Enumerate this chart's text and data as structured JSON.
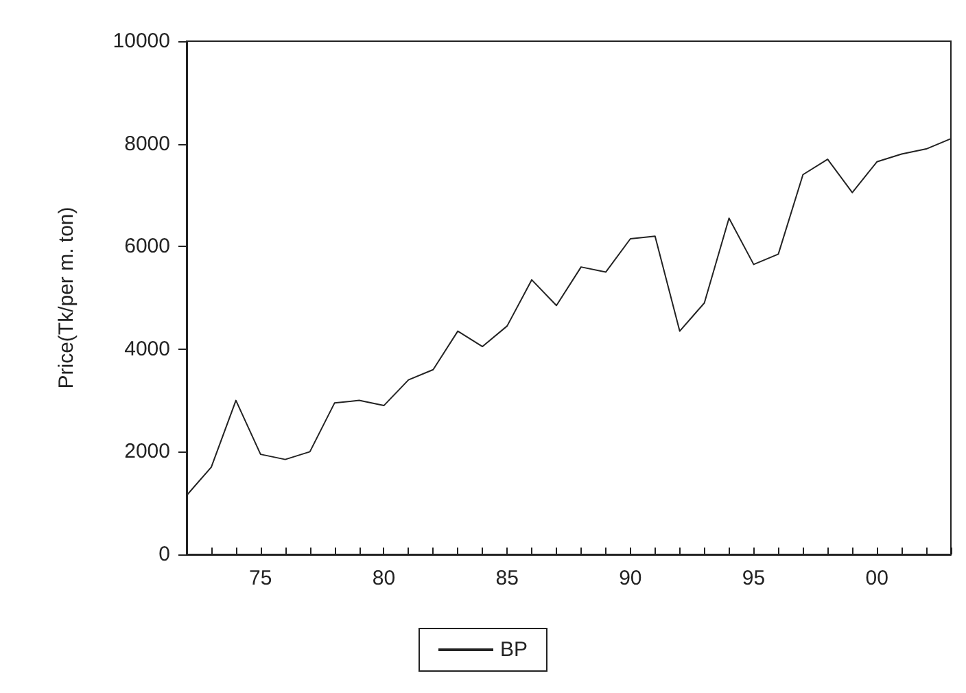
{
  "chart_data": {
    "type": "line",
    "ylabel": "Price(Tk/per m. ton)",
    "x": [
      1972,
      1973,
      1974,
      1975,
      1976,
      1977,
      1978,
      1979,
      1980,
      1981,
      1982,
      1983,
      1984,
      1985,
      1986,
      1987,
      1988,
      1989,
      1990,
      1991,
      1992,
      1993,
      1994,
      1995,
      1996,
      1997,
      1998,
      1999,
      2000,
      2001,
      2002,
      2003
    ],
    "series": [
      {
        "name": "BP",
        "color": "#222222",
        "values": [
          1150,
          1700,
          3000,
          1950,
          1850,
          2000,
          2950,
          3000,
          2900,
          3400,
          3600,
          4350,
          4050,
          4450,
          5350,
          4850,
          5600,
          5500,
          6150,
          6200,
          4350,
          4900,
          6550,
          5650,
          5850,
          7400,
          7700,
          7050,
          7650,
          7800,
          7900,
          8100
        ]
      }
    ],
    "xlim": [
      1972,
      2003
    ],
    "xticks": [
      {
        "value": 1972,
        "label": null
      },
      {
        "value": 1973,
        "label": null
      },
      {
        "value": 1974,
        "label": null
      },
      {
        "value": 1975,
        "label": "75"
      },
      {
        "value": 1976,
        "label": null
      },
      {
        "value": 1977,
        "label": null
      },
      {
        "value": 1978,
        "label": null
      },
      {
        "value": 1979,
        "label": null
      },
      {
        "value": 1980,
        "label": "80"
      },
      {
        "value": 1981,
        "label": null
      },
      {
        "value": 1982,
        "label": null
      },
      {
        "value": 1983,
        "label": null
      },
      {
        "value": 1984,
        "label": null
      },
      {
        "value": 1985,
        "label": "85"
      },
      {
        "value": 1986,
        "label": null
      },
      {
        "value": 1987,
        "label": null
      },
      {
        "value": 1988,
        "label": null
      },
      {
        "value": 1989,
        "label": null
      },
      {
        "value": 1990,
        "label": "90"
      },
      {
        "value": 1991,
        "label": null
      },
      {
        "value": 1992,
        "label": null
      },
      {
        "value": 1993,
        "label": null
      },
      {
        "value": 1994,
        "label": null
      },
      {
        "value": 1995,
        "label": "95"
      },
      {
        "value": 1996,
        "label": null
      },
      {
        "value": 1997,
        "label": null
      },
      {
        "value": 1998,
        "label": null
      },
      {
        "value": 1999,
        "label": null
      },
      {
        "value": 2000,
        "label": "00"
      },
      {
        "value": 2001,
        "label": null
      },
      {
        "value": 2002,
        "label": null
      },
      {
        "value": 2003,
        "label": null
      }
    ],
    "ylim": [
      0,
      10000
    ],
    "yticks": [
      0,
      2000,
      4000,
      6000,
      8000,
      10000
    ],
    "grid": false,
    "legend": "bottom",
    "marker": "none",
    "line_style": "solid"
  }
}
